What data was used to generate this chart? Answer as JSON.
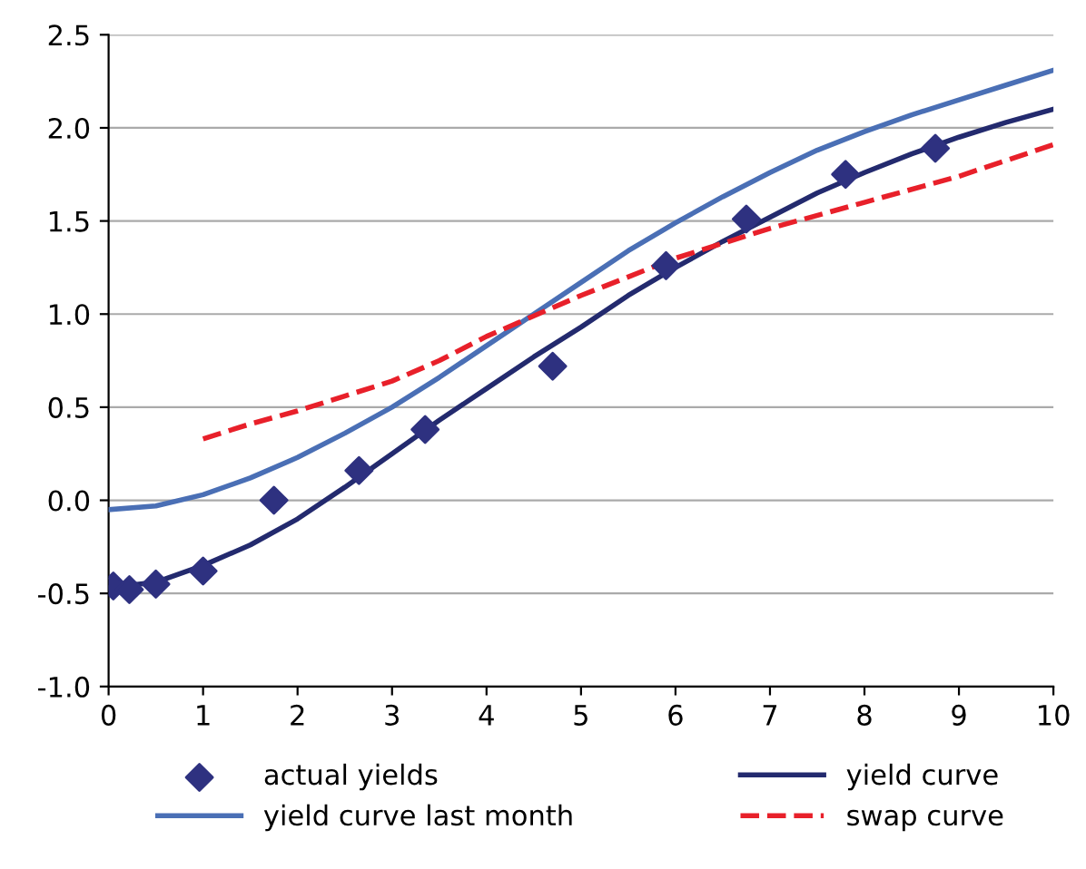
{
  "chart_data": {
    "type": "line",
    "xlim": [
      0,
      10
    ],
    "xticks": [
      0,
      1,
      2,
      3,
      4,
      5,
      6,
      7,
      8,
      9,
      10
    ],
    "ylim": [
      -1.0,
      2.5
    ],
    "yticks": [
      {
        "value": -1.0,
        "label": "-1.0"
      },
      {
        "value": -0.5,
        "label": "-0.5"
      },
      {
        "value": 0.0,
        "label": "0.0"
      },
      {
        "value": 0.5,
        "label": "0.5"
      },
      {
        "value": 1.0,
        "label": "1.0"
      },
      {
        "value": 1.5,
        "label": "1.5"
      },
      {
        "value": 2.0,
        "label": "2.0"
      },
      {
        "value": 2.5,
        "label": "2.5"
      }
    ],
    "grid": "y",
    "legend": "bottom",
    "series": [
      {
        "name": "actual yields",
        "type": "scatter",
        "marker": "diamond",
        "color": "#2e3180",
        "x": [
          0.05,
          0.22,
          0.5,
          1.0,
          1.75,
          2.65,
          3.35,
          4.7,
          5.9,
          6.75,
          7.8,
          8.75
        ],
        "values": [
          -0.46,
          -0.48,
          -0.45,
          -0.38,
          0.0,
          0.16,
          0.38,
          0.72,
          1.26,
          1.51,
          1.75,
          1.89
        ]
      },
      {
        "name": "yield curve last month",
        "line_style": "solid",
        "color": "#4a6fb5",
        "x": [
          0,
          0.5,
          1,
          1.5,
          2,
          2.5,
          3,
          3.5,
          4,
          4.5,
          5,
          5.5,
          6,
          6.5,
          7,
          7.5,
          8,
          8.5,
          9,
          9.5,
          10
        ],
        "values": [
          -0.05,
          -0.03,
          0.03,
          0.12,
          0.23,
          0.36,
          0.5,
          0.66,
          0.83,
          1.0,
          1.17,
          1.34,
          1.49,
          1.63,
          1.76,
          1.88,
          1.98,
          2.07,
          2.15,
          2.23,
          2.31
        ]
      },
      {
        "name": "yield curve",
        "line_style": "solid",
        "color": "#232a6e",
        "x": [
          0,
          0.5,
          1,
          1.5,
          2,
          2.5,
          3,
          3.5,
          4,
          4.5,
          5,
          5.5,
          6,
          6.5,
          7,
          7.5,
          8,
          8.5,
          9,
          9.5,
          10
        ],
        "values": [
          -0.47,
          -0.44,
          -0.35,
          -0.24,
          -0.1,
          0.07,
          0.25,
          0.43,
          0.6,
          0.77,
          0.93,
          1.1,
          1.25,
          1.39,
          1.52,
          1.65,
          1.76,
          1.86,
          1.95,
          2.03,
          2.1
        ]
      },
      {
        "name": "swap curve",
        "line_style": "dashed",
        "color": "#e8202a",
        "x": [
          1,
          1.5,
          2,
          2.5,
          3,
          3.5,
          4,
          5,
          6,
          7,
          8,
          9,
          10
        ],
        "values": [
          0.33,
          0.41,
          0.48,
          0.56,
          0.64,
          0.75,
          0.88,
          1.1,
          1.3,
          1.46,
          1.6,
          1.74,
          1.91
        ]
      }
    ]
  }
}
